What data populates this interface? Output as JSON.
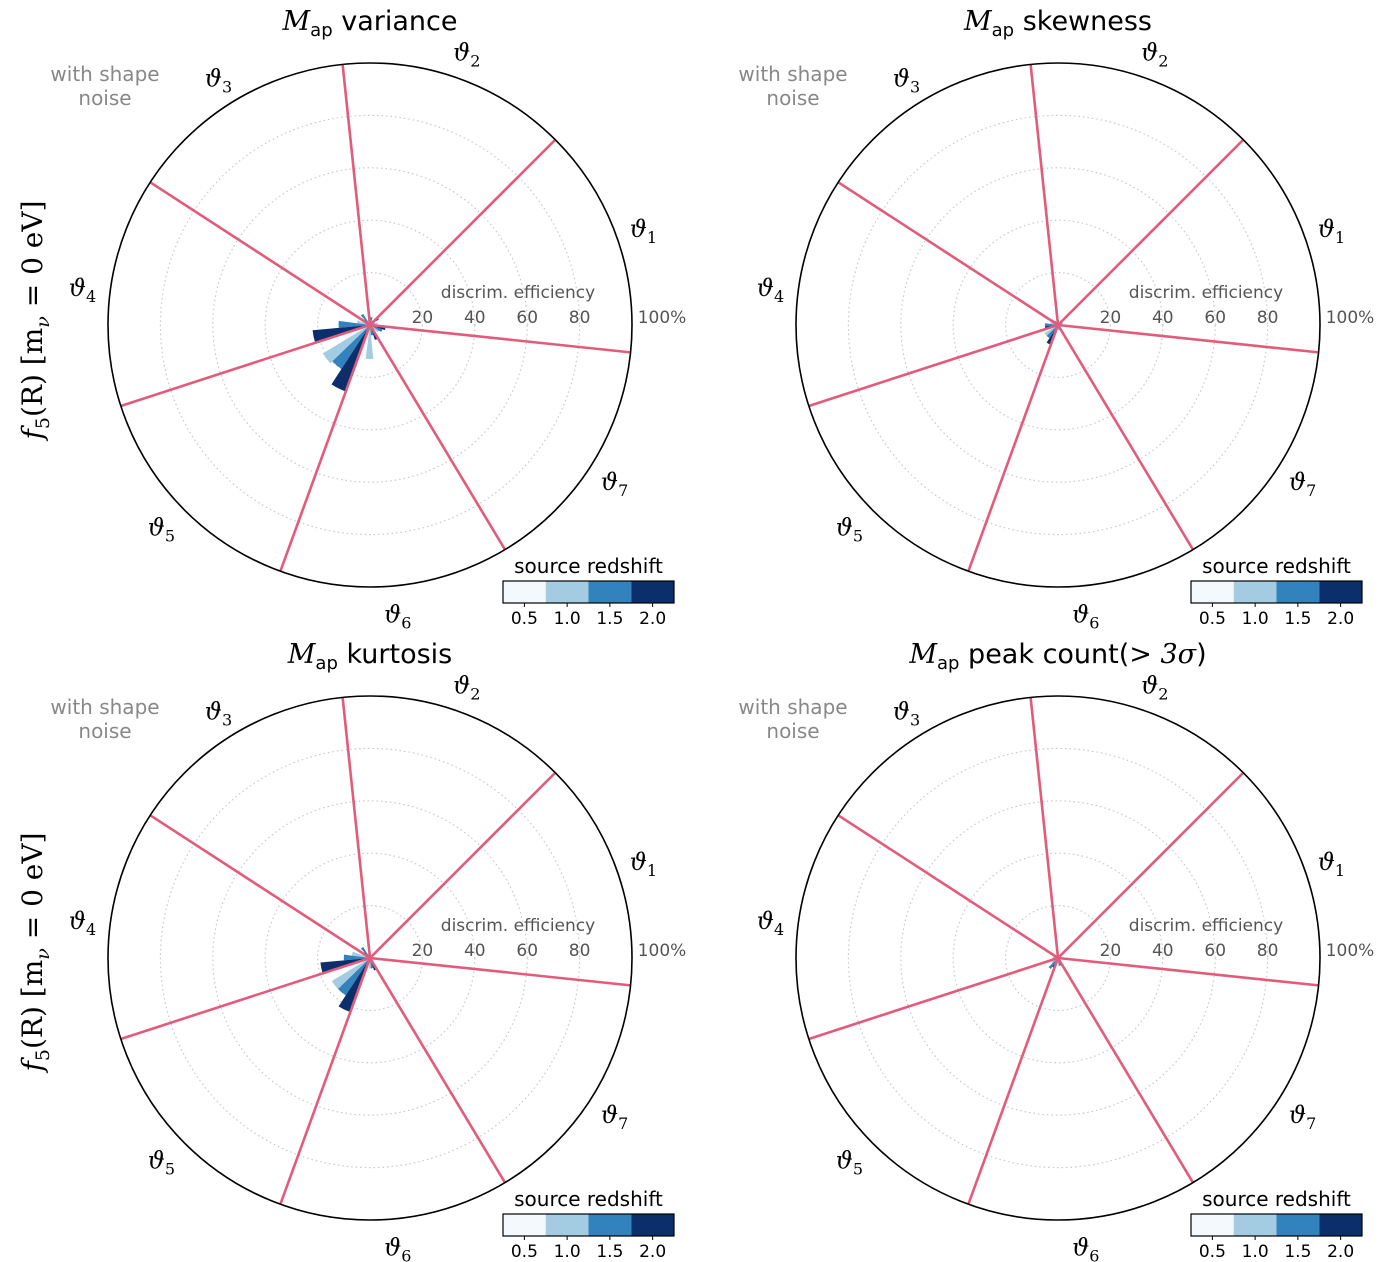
{
  "figure": {
    "row_label": "f₅(R) [mν = 0 eV]",
    "row_label_parts": {
      "main": "f",
      "sub5": "5",
      "mid": "(R) [m",
      "subnu": "ν",
      "end": " = 0 eV]"
    },
    "shape_noise_label_line1": "with shape",
    "shape_noise_label_line2": "noise",
    "efficiency_label": "discrim. efficiency",
    "radial_ticks": [
      "20",
      "40",
      "60",
      "80",
      "100%"
    ],
    "legend_title": "source redshift",
    "legend_ticks": [
      "0.5",
      "1.0",
      "1.5",
      "2.0"
    ],
    "legend_colors": [
      "#f4f9fe",
      "#a3cce3",
      "#3282be",
      "#0a2f6b"
    ],
    "divider_color": "#e35b7a",
    "theta_labels": [
      "ϑ1",
      "ϑ2",
      "ϑ3",
      "ϑ4",
      "ϑ5",
      "ϑ6",
      "ϑ7"
    ]
  },
  "chart_data": [
    {
      "type": "polar-bar",
      "title": "Map variance",
      "title_parts": {
        "M": "M",
        "sub": "ap",
        "rest": " variance"
      },
      "rlim": [
        0,
        100
      ],
      "sectors": [
        "ϑ1",
        "ϑ2",
        "ϑ3",
        "ϑ4",
        "ϑ5",
        "ϑ6",
        "ϑ7"
      ],
      "series_names": [
        "0.5",
        "1.0",
        "1.5",
        "2.0"
      ],
      "values": [
        [
          3,
          3,
          2,
          4
        ],
        [
          2,
          2,
          3,
          3
        ],
        [
          1,
          2,
          5,
          3
        ],
        [
          2,
          5,
          12,
          22
        ],
        [
          11,
          21,
          20,
          27
        ],
        [
          12,
          13,
          4,
          6
        ],
        [
          3,
          4,
          5,
          6
        ]
      ]
    },
    {
      "type": "polar-bar",
      "title": "Map skewness",
      "title_parts": {
        "M": "M",
        "sub": "ap",
        "rest": " skewness"
      },
      "rlim": [
        0,
        100
      ],
      "sectors": [
        "ϑ1",
        "ϑ2",
        "ϑ3",
        "ϑ4",
        "ϑ5",
        "ϑ6",
        "ϑ7"
      ],
      "series_names": [
        "0.5",
        "1.0",
        "1.5",
        "2.0"
      ],
      "values": [
        [
          1,
          1,
          2,
          2
        ],
        [
          0,
          0,
          1,
          1
        ],
        [
          1,
          1,
          2,
          3
        ],
        [
          3,
          3,
          5,
          5
        ],
        [
          3,
          6,
          6,
          8
        ],
        [
          2,
          1,
          2,
          1
        ],
        [
          1,
          1,
          1,
          1
        ]
      ]
    },
    {
      "type": "polar-bar",
      "title": "Map kurtosis",
      "title_parts": {
        "M": "M",
        "sub": "ap",
        "rest": " kurtosis"
      },
      "rlim": [
        0,
        100
      ],
      "sectors": [
        "ϑ1",
        "ϑ2",
        "ϑ3",
        "ϑ4",
        "ϑ5",
        "ϑ6",
        "ϑ7"
      ],
      "series_names": [
        "0.5",
        "1.0",
        "1.5",
        "2.0"
      ],
      "values": [
        [
          0,
          1,
          1,
          1
        ],
        [
          0,
          1,
          1,
          2
        ],
        [
          1,
          2,
          5,
          3
        ],
        [
          2,
          7,
          10,
          19
        ],
        [
          9,
          17,
          17,
          22
        ],
        [
          4,
          4,
          4,
          5
        ],
        [
          1,
          1,
          1,
          2
        ]
      ]
    },
    {
      "type": "polar-bar",
      "title": "Map peak count(>3σ)",
      "title_parts": {
        "M": "M",
        "sub": "ap",
        "rest": " peak count(",
        "rest_math": "> 3σ",
        "end": ")"
      },
      "rlim": [
        0,
        100
      ],
      "sectors": [
        "ϑ1",
        "ϑ2",
        "ϑ3",
        "ϑ4",
        "ϑ5",
        "ϑ6",
        "ϑ7"
      ],
      "series_names": [
        "0.5",
        "1.0",
        "1.5",
        "2.0"
      ],
      "values": [
        [
          0,
          0,
          1,
          1
        ],
        [
          0,
          0,
          0,
          1
        ],
        [
          0,
          0,
          1,
          1
        ],
        [
          1,
          1,
          2,
          2
        ],
        [
          2,
          3,
          5,
          4
        ],
        [
          1,
          2,
          3,
          3
        ],
        [
          0,
          1,
          1,
          1
        ]
      ]
    }
  ]
}
